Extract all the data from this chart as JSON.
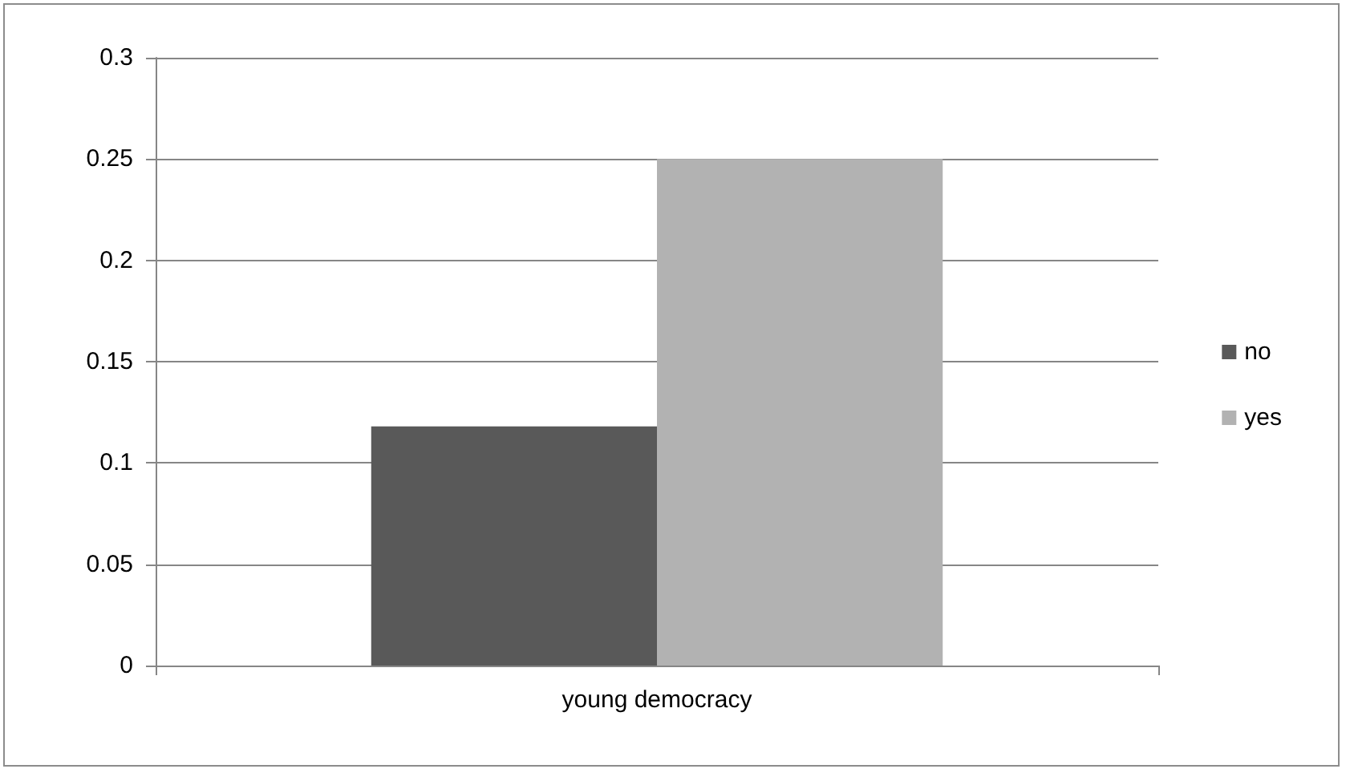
{
  "chart_data": {
    "type": "bar",
    "categories": [
      "young democracy"
    ],
    "series": [
      {
        "name": "no",
        "color": "#595959",
        "values": [
          0.118
        ]
      },
      {
        "name": "yes",
        "color": "#b2b2b2",
        "values": [
          0.25
        ]
      }
    ],
    "ylim": [
      0,
      0.3
    ],
    "yticks": [
      0,
      0.05,
      0.1,
      0.15,
      0.2,
      0.25,
      0.3
    ],
    "grid": "y",
    "legend": "right"
  }
}
